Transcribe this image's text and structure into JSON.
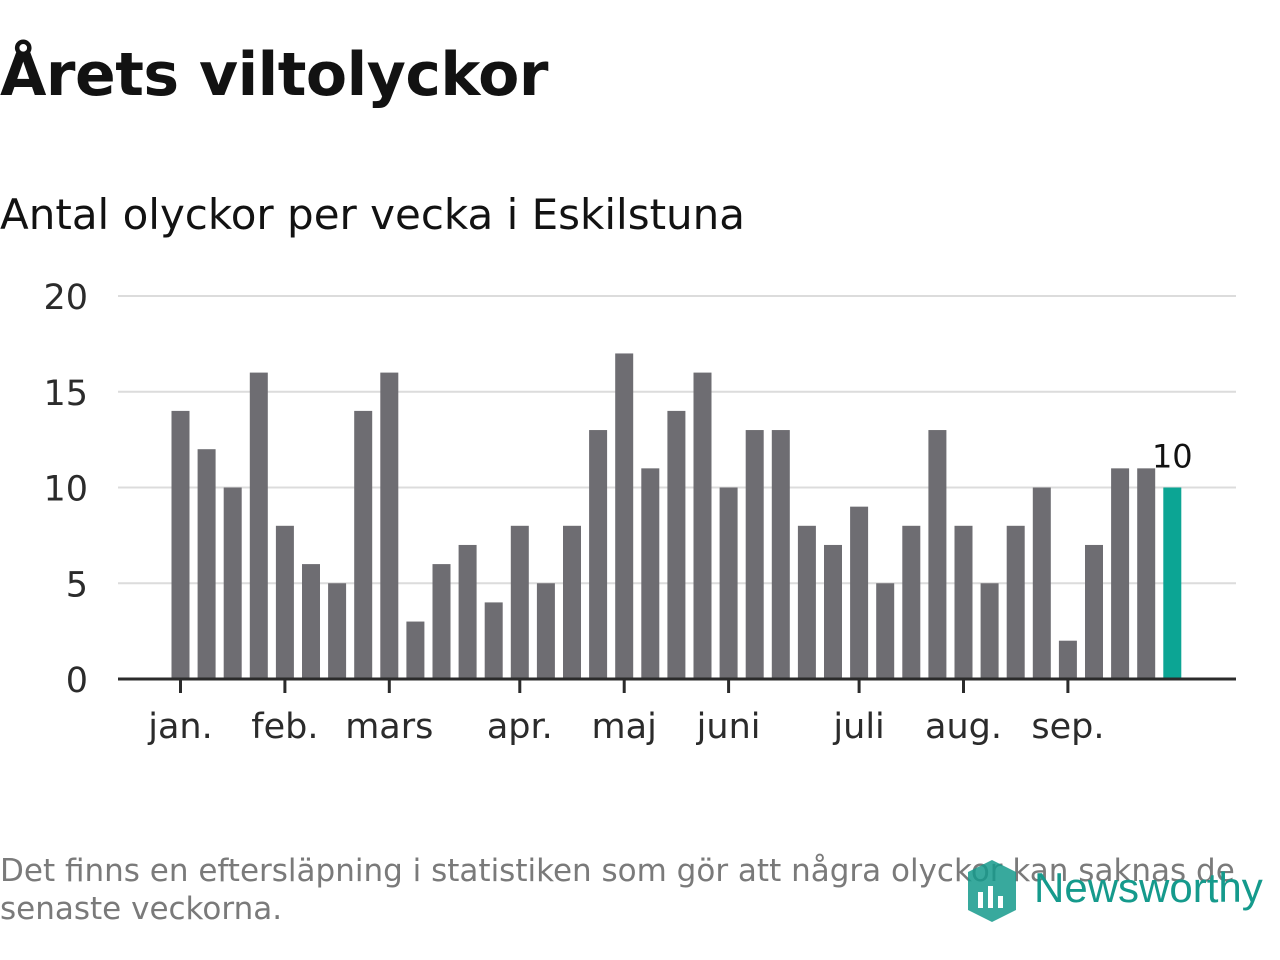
{
  "title": "Årets viltolyckor",
  "subtitle": "Antal olyckor per vecka i Eskilstuna",
  "footnote": "Det finns en eftersläpning i statistiken som gör att några olyckor kan saknas de senaste veckorna.",
  "logo": {
    "text": "Newsworthy",
    "icon": "newsworthy-logo-icon"
  },
  "colors": {
    "bar": "#6e6d72",
    "highlight": "#0ca594",
    "grid": "#dcdcdc",
    "axis": "#2b2b2b",
    "text": "#2b2b2b"
  },
  "chart_data": {
    "type": "bar",
    "title": "Årets viltolyckor",
    "subtitle": "Antal olyckor per vecka i Eskilstuna",
    "ylim": [
      0,
      20
    ],
    "yticks": [
      "0",
      "5",
      "10",
      "15",
      "20"
    ],
    "grid": true,
    "values": [
      14,
      12,
      10,
      16,
      8,
      6,
      5,
      14,
      16,
      3,
      6,
      7,
      4,
      8,
      5,
      8,
      13,
      17,
      11,
      14,
      16,
      10,
      13,
      13,
      8,
      7,
      9,
      5,
      8,
      13,
      8,
      5,
      8,
      10,
      2,
      7,
      11,
      11,
      10
    ],
    "highlight_index": 38,
    "highlight_label": "10",
    "month_labels": [
      {
        "label": "jan.",
        "week": 0
      },
      {
        "label": "feb.",
        "week": 4
      },
      {
        "label": "mars",
        "week": 8
      },
      {
        "label": "apr.",
        "week": 13
      },
      {
        "label": "maj",
        "week": 17
      },
      {
        "label": "juni",
        "week": 21
      },
      {
        "label": "juli",
        "week": 26
      },
      {
        "label": "aug.",
        "week": 30
      },
      {
        "label": "sep.",
        "week": 34
      }
    ]
  }
}
